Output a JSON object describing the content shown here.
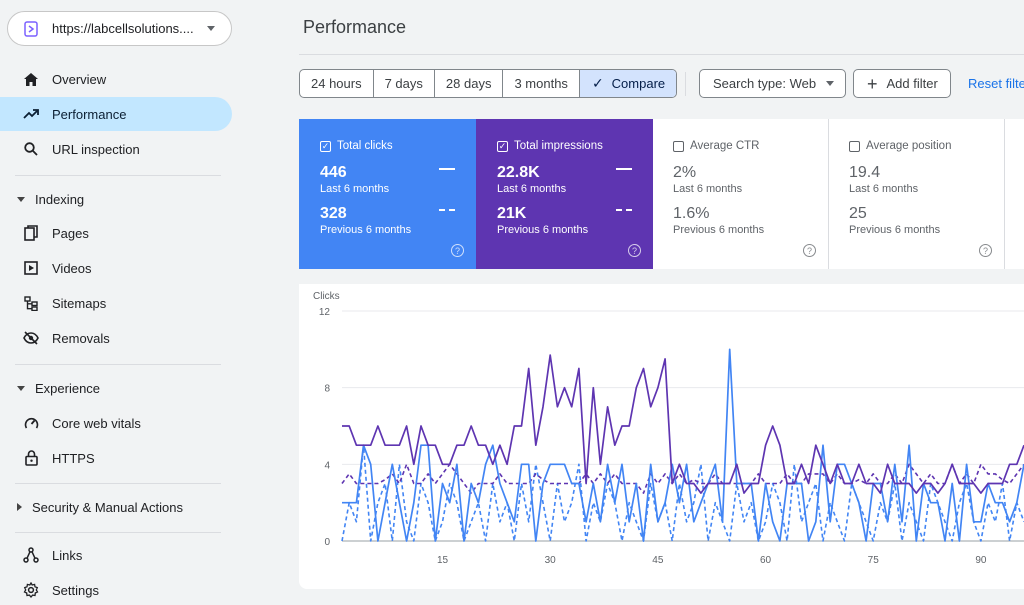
{
  "property": {
    "label": "https://labcellsolutions...."
  },
  "nav": {
    "overview": "Overview",
    "performance": "Performance",
    "url_inspection": "URL inspection",
    "indexing": "Indexing",
    "pages": "Pages",
    "videos": "Videos",
    "sitemaps": "Sitemaps",
    "removals": "Removals",
    "experience": "Experience",
    "core_web_vitals": "Core web vitals",
    "https": "HTTPS",
    "security": "Security & Manual Actions",
    "links": "Links",
    "settings": "Settings"
  },
  "header": {
    "title": "Performance"
  },
  "ranges": [
    {
      "label": "24 hours"
    },
    {
      "label": "7 days"
    },
    {
      "label": "28 days"
    },
    {
      "label": "3 months"
    },
    {
      "label": "Compare"
    }
  ],
  "filters": {
    "search_type": "Search type: Web",
    "add_filter": "Add filter",
    "reset": "Reset filte"
  },
  "metrics": {
    "clicks": {
      "label": "Total clicks",
      "value": "446",
      "period": "Last 6 months",
      "prev_value": "328",
      "prev_period": "Previous 6 months"
    },
    "impressions": {
      "label": "Total impressions",
      "value": "22.8K",
      "period": "Last 6 months",
      "prev_value": "21K",
      "prev_period": "Previous 6 months"
    },
    "ctr": {
      "label": "Average CTR",
      "value": "2%",
      "period": "Last 6 months",
      "prev_value": "1.6%",
      "prev_period": "Previous 6 months"
    },
    "position": {
      "label": "Average position",
      "value": "19.4",
      "period": "Last 6 months",
      "prev_value": "25",
      "prev_period": "Previous 6 months"
    }
  },
  "colors": {
    "clicks": "#4285f4",
    "impressions": "#5e35b1",
    "active_nav": "#c2e7ff"
  },
  "chart_data": {
    "type": "line",
    "ylabel": "Clicks",
    "ylim": [
      0,
      12
    ],
    "yticks": [
      0,
      4,
      8,
      12
    ],
    "xticks": [
      15,
      30,
      45,
      60,
      75,
      90
    ],
    "xlim": [
      1,
      96
    ],
    "series": [
      {
        "name": "Total clicks",
        "style": "solid",
        "color": "#4285f4",
        "values": [
          2,
          2,
          2,
          5,
          4,
          0,
          2,
          4,
          2,
          0,
          2,
          5,
          5,
          0,
          3,
          2,
          4,
          0,
          3,
          2,
          4,
          5,
          3,
          2,
          1,
          4,
          4,
          0,
          3,
          4,
          4,
          4,
          3,
          3,
          1,
          3,
          1,
          4,
          2,
          4,
          1,
          3,
          0,
          4,
          1,
          2,
          4,
          2,
          4,
          1,
          2,
          3,
          4,
          1,
          10,
          3,
          3,
          3,
          0,
          3,
          1,
          0,
          3,
          3,
          3,
          0,
          1,
          5,
          1,
          4,
          4,
          3,
          2,
          0,
          3,
          3,
          1,
          4,
          1,
          5,
          0,
          3,
          2,
          2,
          0,
          3,
          0,
          4,
          1,
          1,
          3,
          2,
          2,
          1,
          2,
          4
        ]
      },
      {
        "name": "Total impressions",
        "style": "solid",
        "color": "#5e35b1",
        "values": [
          6,
          6,
          5,
          5,
          5,
          6,
          5,
          5,
          5,
          6,
          4,
          6,
          5,
          5,
          4,
          4,
          5,
          5,
          6,
          5,
          5,
          4,
          5,
          4,
          6,
          6,
          9,
          5,
          7,
          9.7,
          7,
          8,
          7,
          9,
          3,
          8,
          4,
          7,
          5,
          6,
          6,
          8,
          9,
          7,
          8,
          9.5,
          3,
          4,
          3,
          3,
          2.5,
          3,
          3,
          3,
          3,
          4,
          2.5,
          3,
          3,
          5,
          6,
          5,
          3,
          3,
          4,
          3,
          5,
          4,
          3,
          4,
          3,
          3,
          4,
          3,
          3,
          2.5,
          4,
          3,
          3,
          3,
          2.5,
          3,
          3,
          2.5,
          3,
          4,
          3,
          3,
          3,
          2.5,
          3,
          3,
          3,
          4,
          4,
          5
        ]
      },
      {
        "name": "Clicks (previous)",
        "style": "dashed",
        "color": "#4285f4",
        "values": [
          0,
          2,
          1,
          5,
          0,
          2,
          3,
          0,
          4,
          1,
          0,
          3,
          2,
          0,
          1,
          3,
          2,
          0,
          1,
          2,
          0,
          3,
          1,
          2,
          0,
          3,
          1,
          4,
          2,
          0,
          3,
          1,
          2,
          4,
          0,
          2,
          1,
          3,
          2,
          0,
          2,
          1,
          0,
          3,
          1,
          2,
          0,
          3,
          1,
          2,
          4,
          0,
          2,
          1,
          0,
          3,
          1,
          2,
          0,
          1,
          3,
          2,
          0,
          4,
          1,
          2,
          3,
          0,
          2,
          1,
          0,
          3,
          2,
          1,
          0,
          2,
          1,
          3,
          0,
          2,
          1,
          0,
          3,
          2,
          1,
          0,
          2,
          3,
          1,
          0,
          2,
          1,
          3,
          0,
          2,
          1
        ]
      },
      {
        "name": "Impressions (previous)",
        "style": "dashed",
        "color": "#5e35b1",
        "values": [
          3,
          3.5,
          3,
          3,
          3,
          3,
          3.2,
          3.5,
          3,
          4,
          3,
          3,
          3.5,
          3,
          3.5,
          4,
          3.5,
          3,
          2.5,
          3,
          3,
          3,
          3.5,
          3,
          3,
          3,
          3,
          3.5,
          3.2,
          3,
          3,
          3,
          3,
          3,
          3.5,
          3,
          3.5,
          3,
          3.5,
          3,
          3,
          3,
          2.5,
          3.5,
          3,
          3.5,
          3,
          3.5,
          3,
          3.2,
          3,
          3,
          3.5,
          3,
          3,
          3,
          3,
          3,
          3.5,
          3,
          3,
          3,
          3.5,
          3,
          3,
          3.5,
          3.5,
          3.5,
          3,
          3.5,
          3,
          3,
          3.2,
          3,
          3.5,
          3,
          3,
          3.5,
          3,
          4,
          3.5,
          3,
          3.5,
          3,
          3,
          4,
          3,
          3.5,
          3,
          4,
          3.5,
          3.5,
          3.2,
          3,
          3.5,
          4
        ]
      }
    ]
  }
}
